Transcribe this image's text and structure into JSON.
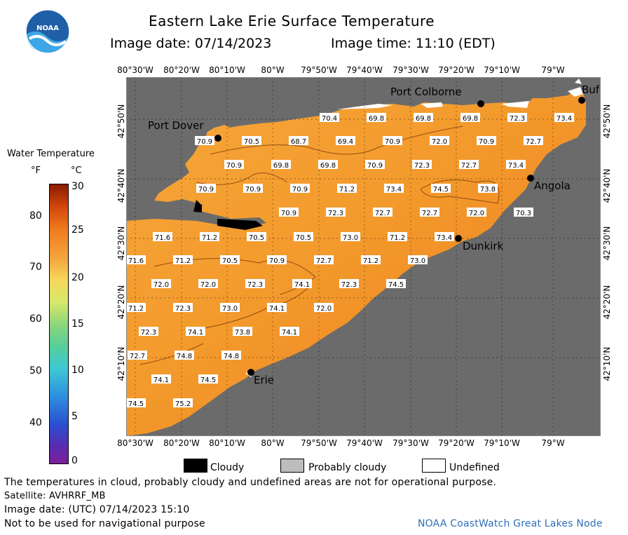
{
  "header": {
    "title": "Eastern Lake Erie Surface Temperature",
    "image_date": "Image date: 07/14/2023",
    "image_time": "Image time: 11:10 (EDT)"
  },
  "logo": {
    "text": "NOAA"
  },
  "axes": {
    "top": [
      "80°30'W",
      "80°20'W",
      "80°10'W",
      "80°W",
      "79°50'W",
      "79°40'W",
      "79°30'W",
      "79°20'W",
      "79°10'W",
      "79°W"
    ],
    "bottom": [
      "80°30'W",
      "80°20'W",
      "80°10'W",
      "80°W",
      "79°50'W",
      "79°40'W",
      "79°30'W",
      "79°20'W",
      "79°10'W",
      "79°W"
    ],
    "left": [
      "42°50'N",
      "42°40'N",
      "42°30'N",
      "42°20'N",
      "42°10'N"
    ],
    "right": [
      "42°50'N",
      "42°40'N",
      "42°30'N",
      "42°20'N",
      "42°10'N"
    ]
  },
  "places": {
    "port_dover": "Port Dover",
    "port_colborne": "Port Colborne",
    "buffalo": "Buf",
    "angola": "Angola",
    "dunkirk": "Dunkirk",
    "erie": "Erie"
  },
  "temperatures": [
    [
      "70.4",
      "69.8",
      "69.8",
      "69.8",
      "72.3",
      "73.4"
    ],
    [
      "70.9",
      "70.5",
      "68.7",
      "69.4",
      "70.9",
      "72.0",
      "70.9",
      "72.7"
    ],
    [
      "70.9",
      "69.8",
      "69.8",
      "70.9",
      "72.3",
      "72.7",
      "73.4"
    ],
    [
      "70.9",
      "70.9",
      "70.9",
      "71.2",
      "73.4",
      "74.5",
      "73.8"
    ],
    [
      "70.9",
      "72.3",
      "72.7",
      "72.7",
      "72.0",
      "70.3"
    ],
    [
      "71.6",
      "71.2",
      "70.5",
      "70.5",
      "73.0",
      "71.2",
      "73.4"
    ],
    [
      "71.6",
      "71.2",
      "70.5",
      "70.9",
      "72.7",
      "71.2",
      "73.0"
    ],
    [
      "72.0",
      "72.0",
      "72.3",
      "74.1",
      "72.3",
      "74.5"
    ],
    [
      "71.2",
      "72.3",
      "73.0",
      "74.1",
      "72.0"
    ],
    [
      "72.3",
      "74.1",
      "73.8",
      "74.1"
    ],
    [
      "72.7",
      "74.8",
      "74.8"
    ],
    [
      "74.1",
      "74.5"
    ],
    [
      "74.5",
      "75.2"
    ]
  ],
  "legend": {
    "title": "Water Temperature",
    "unit_f": "°F",
    "unit_c": "°C",
    "f_ticks": [
      "80",
      "70",
      "60",
      "50",
      "40"
    ],
    "c_ticks": [
      "30",
      "25",
      "20",
      "15",
      "10",
      "5",
      "0"
    ]
  },
  "key": {
    "cloudy": "Cloudy",
    "probably_cloudy": "Probably cloudy",
    "undefined": "Undefined",
    "cloudy_color": "#000000",
    "probably_cloudy_color": "#bdbdbd",
    "undefined_color": "#ffffff"
  },
  "footer": {
    "disclaimer": "The temperatures in cloud, probably cloudy and undefined areas are not for operational purpose.",
    "satellite": "Satellite: AVHRRF_MB",
    "utc_date": "Image date: (UTC) 07/14/2023  15:10",
    "nav": "Not to be used for navigational purpose",
    "credit": "NOAA CoastWatch Great Lakes Node"
  },
  "colors": {
    "land": "#6b6b6b",
    "water": "#f39a2c",
    "water_warm": "#ee7d1e",
    "grid": "#000000"
  }
}
